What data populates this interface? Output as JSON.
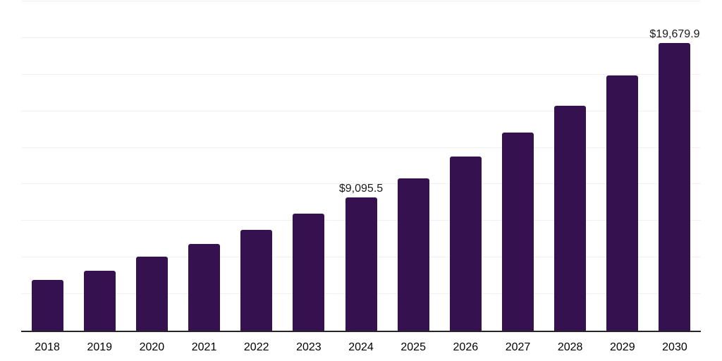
{
  "style": {
    "background": "#ffffff",
    "bar_color": "#36114F",
    "grid_color": "#f0f0f0",
    "axis_color": "#262626",
    "tick_label_color": "#474747",
    "data_label_color": "#1a1a1a"
  },
  "chart_data": {
    "type": "bar",
    "title": "",
    "xlabel": "",
    "ylabel": "",
    "categories": [
      "2018",
      "2019",
      "2020",
      "2021",
      "2022",
      "2023",
      "2024",
      "2025",
      "2026",
      "2027",
      "2028",
      "2029",
      "2030"
    ],
    "values": [
      3460,
      4120,
      5040,
      5940,
      6880,
      7980,
      9095.5,
      10430,
      11920,
      13550,
      15380,
      17450,
      19679.9
    ],
    "data_labels": [
      {
        "category": "2024",
        "text": "$9,095.5"
      },
      {
        "category": "2030",
        "text": "$19,679.9"
      }
    ],
    "ylim": [
      0,
      22500
    ],
    "grid_step": 2500,
    "grid": "horizontal-only",
    "legend": false,
    "y_axis_tick_labels": false
  }
}
